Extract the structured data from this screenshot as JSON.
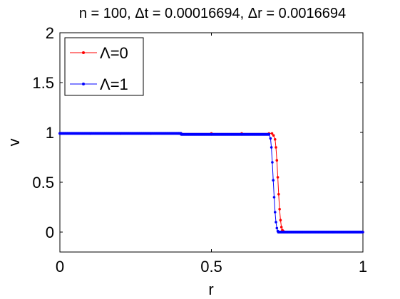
{
  "chart_data": {
    "type": "line",
    "title": "n = 100, Δt = 0.00016694, Δr = 0.0016694",
    "xlabel": "r",
    "ylabel": "v",
    "xlim": [
      0,
      1
    ],
    "ylim": [
      -0.2,
      2
    ],
    "xticks": [
      0,
      0.5,
      1
    ],
    "xtick_labels": [
      "0",
      "0.5",
      "1"
    ],
    "yticks": [
      0,
      0.5,
      1,
      1.5,
      2
    ],
    "ytick_labels": [
      "0",
      "0.5",
      "1",
      "1.5",
      "2"
    ],
    "grid": false,
    "legend_position": "top-left",
    "series": [
      {
        "name": "Λ=0",
        "color": "#ff0000",
        "marker": "dot",
        "x": [
          0.0,
          0.1,
          0.2,
          0.3,
          0.4,
          0.5,
          0.6,
          0.69,
          0.7,
          0.705,
          0.71,
          0.713,
          0.716,
          0.719,
          0.722,
          0.725,
          0.728,
          0.731,
          0.734,
          0.737,
          0.74,
          0.75,
          0.8,
          0.9,
          1.0
        ],
        "y": [
          0.99,
          0.99,
          0.99,
          0.99,
          0.99,
          0.99,
          0.99,
          0.99,
          0.99,
          0.97,
          0.93,
          0.85,
          0.72,
          0.55,
          0.38,
          0.23,
          0.12,
          0.05,
          0.02,
          0.01,
          0.0,
          0.0,
          0.0,
          0.0,
          0.0
        ]
      },
      {
        "name": "Λ=1",
        "color": "#0000ff",
        "marker": "dot",
        "x": [
          0.0,
          0.1,
          0.2,
          0.3,
          0.4,
          0.5,
          0.6,
          0.69,
          0.695,
          0.698,
          0.701,
          0.704,
          0.707,
          0.71,
          0.713,
          0.716,
          0.719,
          0.722,
          0.725,
          0.73,
          0.75,
          0.8,
          0.9,
          1.0
        ],
        "y": [
          0.99,
          0.99,
          0.99,
          0.99,
          0.98,
          0.98,
          0.98,
          0.98,
          0.94,
          0.85,
          0.7,
          0.52,
          0.35,
          0.2,
          0.1,
          0.04,
          0.01,
          0.0,
          0.0,
          0.0,
          0.0,
          0.0,
          0.0,
          0.0
        ]
      }
    ]
  }
}
